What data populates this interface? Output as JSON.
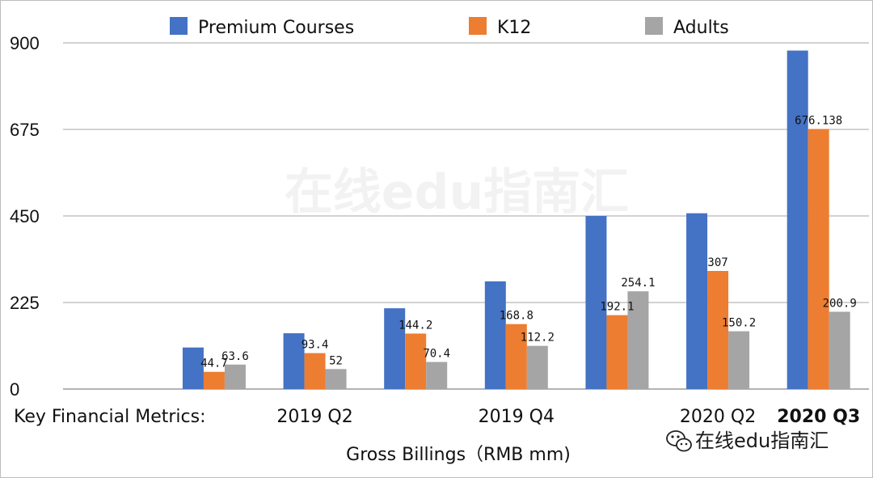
{
  "chart_data": {
    "type": "bar",
    "row_label": "Key Financial Metrics:",
    "xlabel": "Gross Billings（RMB mm)",
    "categories": [
      "",
      "",
      "2019 Q2",
      "",
      "2019 Q4",
      "",
      "2020 Q2",
      "2020 Q3"
    ],
    "bold_categories": [
      "2020 Q3"
    ],
    "series": [
      {
        "name": "Premium Courses",
        "color": "#4472c4",
        "values": [
          null,
          108,
          145,
          210,
          280,
          450,
          457,
          880
        ]
      },
      {
        "name": "K12",
        "color": "#ed7d31",
        "values": [
          null,
          44.7,
          93.4,
          144.2,
          168.8,
          192.1,
          307,
          676.138
        ]
      },
      {
        "name": "Adults",
        "color": "#a5a5a5",
        "values": [
          null,
          63.6,
          52,
          70.4,
          112.2,
          254.1,
          150.2,
          200.9
        ]
      }
    ],
    "data_labels": {
      "K12": [
        "",
        "44.7",
        "93.4",
        "144.2",
        "168.8",
        "192.1",
        "307",
        "676.138"
      ],
      "Adults": [
        "",
        "63.6",
        "52",
        "70.4",
        "112.2",
        "254.1",
        "150.2",
        "200.9"
      ]
    },
    "yticks": [
      "0",
      "225",
      "450",
      "675",
      "900"
    ],
    "ylim": [
      0,
      900
    ],
    "grid": true,
    "legend_position": "top"
  },
  "watermark": "在线edu指南汇",
  "credit": "在线edu指南汇",
  "credit_icon": "wechat-icon"
}
